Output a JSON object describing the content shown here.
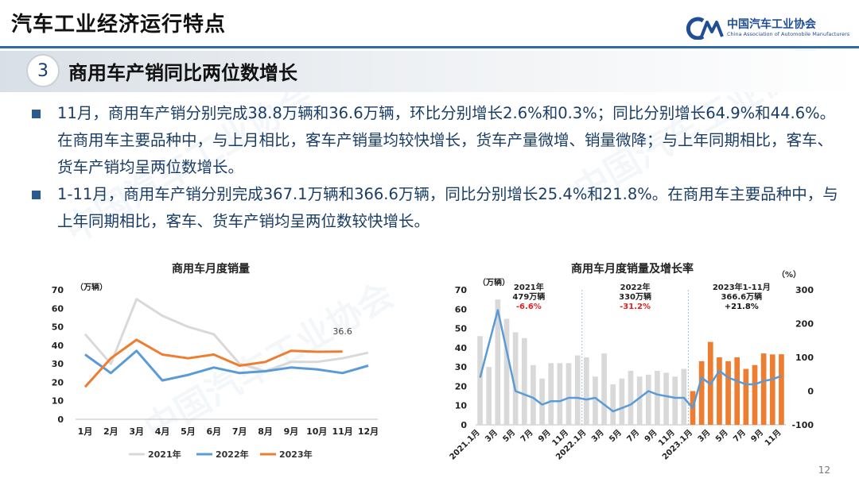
{
  "header": {
    "title": "汽车工业经济运行特点"
  },
  "logo": {
    "name_cn": "中国汽车工业协会",
    "name_en": "China Association of Automobile Manufacturers",
    "mark": "CM"
  },
  "section": {
    "number": "3",
    "title": "商用车产销同比两位数增长"
  },
  "paragraphs": [
    "11月，商用车产销分别完成38.8万辆和36.6万辆，环比分别增长2.6%和0.3%；同比分别增长64.9%和44.6%。在商用车主要品种中，与上月相比，客车产销量均较快增长，货车产量微增、销量微降；与上年同期相比，客车、货车产销均呈两位数增长。",
    "1-11月，商用车产销分别完成367.1万辆和366.6万辆，同比分别增长25.4%和21.8%。在商用车主要品种中，与上年同期相比，客车、货车产销均呈两位数较快增长。"
  ],
  "page_number": "12",
  "chart_data": [
    {
      "type": "line",
      "title": "商用车月度销量",
      "ylabel": "（万辆）",
      "categories": [
        "1月",
        "2月",
        "3月",
        "4月",
        "5月",
        "6月",
        "7月",
        "8月",
        "9月",
        "10月",
        "11月",
        "12月"
      ],
      "ylim": [
        0,
        70
      ],
      "yticks": [
        0,
        10,
        20,
        30,
        40,
        50,
        60,
        70
      ],
      "series": [
        {
          "name": "2021年",
          "color": "#d9d9d9",
          "values": [
            46,
            30,
            65,
            56,
            50,
            46,
            30,
            26,
            31,
            31,
            33,
            36
          ]
        },
        {
          "name": "2022年",
          "color": "#5b9bd5",
          "values": [
            35,
            25,
            37,
            21,
            24,
            28,
            25,
            26,
            28,
            27,
            25,
            29
          ]
        },
        {
          "name": "2023年",
          "color": "#ed7d31",
          "values": [
            17.5,
            33,
            43,
            35,
            33,
            35,
            29,
            31,
            37,
            36.5,
            36.6,
            null
          ]
        }
      ],
      "annotations": [
        {
          "label": "36.6",
          "index": 10
        }
      ]
    },
    {
      "type": "bar",
      "title": "商用车月度销量及增长率",
      "ylabel_left": "（万辆）",
      "ylabel_right": "（%）",
      "ylim_left": [
        0,
        70
      ],
      "yticks_left": [
        0,
        10,
        20,
        30,
        40,
        50,
        60,
        70
      ],
      "ylim_right": [
        -100,
        300
      ],
      "yticks_right": [
        -100,
        0,
        100,
        200,
        300
      ],
      "x_tick_labels": [
        "2021.1月",
        "3月",
        "5月",
        "7月",
        "9月",
        "11月",
        "2022.1月",
        "3月",
        "5月",
        "7月",
        "9月",
        "11月",
        "2023.1月",
        "3月",
        "5月",
        "7月",
        "9月",
        "11月"
      ],
      "bar_sales": [
        46,
        30,
        65,
        55,
        48,
        45,
        31,
        24,
        32,
        32,
        32,
        36,
        35,
        25,
        37,
        21,
        24,
        28,
        25,
        26,
        28,
        27,
        25,
        29,
        17.5,
        33,
        43,
        35,
        33,
        35,
        29,
        31,
        37,
        36.5,
        36.6
      ],
      "bar_colors": {
        "2021": "#d9d9d9",
        "2022": "#d9d9d9",
        "2023": "#ed7d31"
      },
      "growth_line_color": "#5b9bd5",
      "growth": [
        40,
        140,
        240,
        120,
        0,
        -10,
        -20,
        -40,
        -30,
        -30,
        -20,
        -20,
        -25,
        -20,
        -40,
        -60,
        -50,
        -40,
        -20,
        0,
        -10,
        -15,
        -20,
        -20,
        -50,
        40,
        20,
        60,
        40,
        30,
        20,
        20,
        30,
        35,
        45
      ],
      "period_notes": [
        {
          "lines": [
            "2021年",
            "479万辆"
          ],
          "change": "-6.6%",
          "change_color": "#e02020",
          "start": 0
        },
        {
          "lines": [
            "2022年",
            "330万辆"
          ],
          "change": "-31.2%",
          "change_color": "#e02020",
          "start": 12
        },
        {
          "lines": [
            "2023年1-11月",
            "366.6万辆"
          ],
          "change": "+21.8%",
          "change_color": "#111111",
          "start": 24
        }
      ]
    }
  ]
}
